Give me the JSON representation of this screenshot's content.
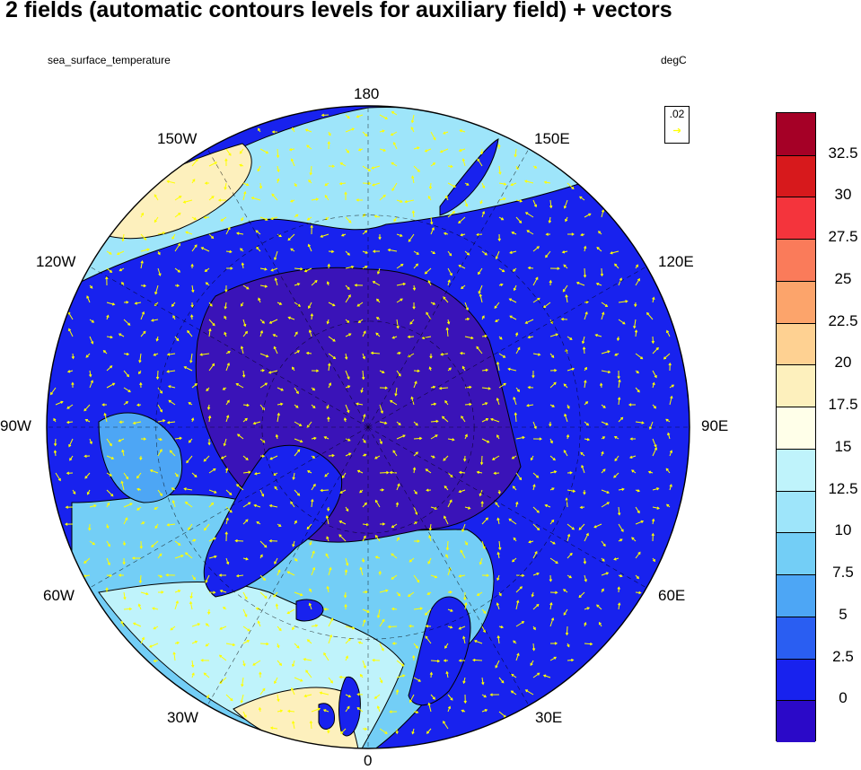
{
  "title": "2 fields (automatic contours levels for auxiliary field) + vectors",
  "field_name": "sea_surface_temperature",
  "units": "degC",
  "vector_key": {
    "label": ".02",
    "color": "#ffff00"
  },
  "longitude_labels": {
    "lon_180": "180",
    "lon_150w": "150W",
    "lon_150e": "150E",
    "lon_120w": "120W",
    "lon_120e": "120E",
    "lon_90w": "90W",
    "lon_90e": "90E",
    "lon_60w": "60W",
    "lon_60e": "60E",
    "lon_30w": "30W",
    "lon_30e": "30E",
    "lon_0": "0"
  },
  "colorbar": {
    "labels": [
      "32.5",
      "30",
      "27.5",
      "25",
      "22.5",
      "20",
      "17.5",
      "15",
      "12.5",
      "10",
      "7.5",
      "5",
      "2.5",
      "0"
    ],
    "colors": [
      "#a50026",
      "#d7191c",
      "#f4343c",
      "#fa7b5a",
      "#fca46b",
      "#fed192",
      "#fdf0bd",
      "#ffffe9",
      "#bff3fb",
      "#9ee5fa",
      "#73cef6",
      "#4da6f5",
      "#2a5ef2",
      "#1822ee",
      "#2b09c8"
    ]
  },
  "palette": {
    "ocean_cold": "#1822ee",
    "arctic_ice": "#3a13b8",
    "shelf_blue": "#4da6f5",
    "mid_blue": "#73cef6",
    "light_blue": "#9ee5fa",
    "pale_cyan": "#bff3fb",
    "warm_cream": "#fdf0bd",
    "land": "#ffffff"
  }
}
